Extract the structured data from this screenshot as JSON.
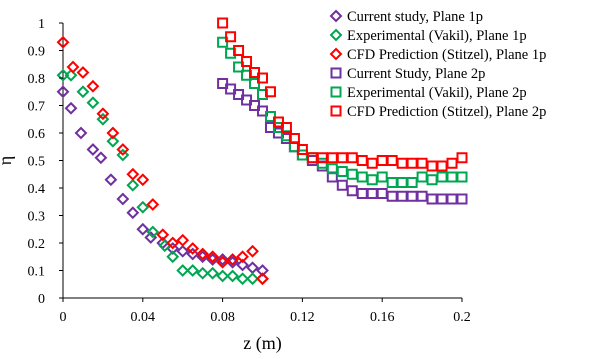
{
  "chart_data": {
    "type": "scatter",
    "xlabel": "z (m)",
    "ylabel": "η",
    "xlim": [
      0,
      0.2
    ],
    "ylim": [
      0,
      1
    ],
    "xticks": [
      "0",
      "0.04",
      "0.08",
      "0.12",
      "0.16",
      "0.2"
    ],
    "yticks": [
      "0",
      "0.1",
      "0.2",
      "0.3",
      "0.4",
      "0.5",
      "0.6",
      "0.7",
      "0.8",
      "0.9",
      "1"
    ],
    "grid": false,
    "legend_position": "top-right",
    "series": [
      {
        "name": "Current study, Plane 1p",
        "marker": "diamond",
        "color": "#7030a0",
        "points": [
          [
            0,
            0.75
          ],
          [
            0.004,
            0.69
          ],
          [
            0.009,
            0.6
          ],
          [
            0.015,
            0.54
          ],
          [
            0.019,
            0.51
          ],
          [
            0.024,
            0.43
          ],
          [
            0.03,
            0.36
          ],
          [
            0.035,
            0.31
          ],
          [
            0.04,
            0.25
          ],
          [
            0.044,
            0.22
          ],
          [
            0.05,
            0.2
          ],
          [
            0.055,
            0.18
          ],
          [
            0.06,
            0.17
          ],
          [
            0.065,
            0.16
          ],
          [
            0.07,
            0.15
          ],
          [
            0.075,
            0.14
          ],
          [
            0.08,
            0.14
          ],
          [
            0.085,
            0.13
          ],
          [
            0.09,
            0.12
          ],
          [
            0.095,
            0.11
          ],
          [
            0.1,
            0.1
          ]
        ]
      },
      {
        "name": "Experimental (Vakil), Plane 1p",
        "marker": "diamond",
        "color": "#00a651",
        "points": [
          [
            0,
            0.81
          ],
          [
            0.004,
            0.81
          ],
          [
            0.01,
            0.75
          ],
          [
            0.015,
            0.71
          ],
          [
            0.02,
            0.65
          ],
          [
            0.025,
            0.57
          ],
          [
            0.03,
            0.52
          ],
          [
            0.035,
            0.41
          ],
          [
            0.04,
            0.33
          ],
          [
            0.045,
            0.24
          ],
          [
            0.051,
            0.19
          ],
          [
            0.055,
            0.15
          ],
          [
            0.06,
            0.1
          ],
          [
            0.065,
            0.1
          ],
          [
            0.07,
            0.09
          ],
          [
            0.075,
            0.09
          ],
          [
            0.08,
            0.08
          ],
          [
            0.085,
            0.08
          ],
          [
            0.09,
            0.07
          ],
          [
            0.095,
            0.07
          ],
          [
            0.1,
            0.07
          ]
        ]
      },
      {
        "name": "CFD Prediction (Stitzel), Plane 1p",
        "marker": "diamond",
        "color": "#ff0000",
        "points": [
          [
            0,
            0.93
          ],
          [
            0.005,
            0.84
          ],
          [
            0.01,
            0.82
          ],
          [
            0.015,
            0.77
          ],
          [
            0.02,
            0.67
          ],
          [
            0.025,
            0.6
          ],
          [
            0.03,
            0.54
          ],
          [
            0.035,
            0.45
          ],
          [
            0.04,
            0.43
          ],
          [
            0.045,
            0.34
          ],
          [
            0.05,
            0.23
          ],
          [
            0.055,
            0.2
          ],
          [
            0.06,
            0.21
          ],
          [
            0.065,
            0.18
          ],
          [
            0.07,
            0.16
          ],
          [
            0.075,
            0.15
          ],
          [
            0.08,
            0.13
          ],
          [
            0.085,
            0.14
          ],
          [
            0.09,
            0.15
          ],
          [
            0.095,
            0.17
          ],
          [
            0.1,
            0.07
          ]
        ]
      },
      {
        "name": "Current Study, Plane 2p",
        "marker": "square",
        "color": "#7030a0",
        "points": [
          [
            0.08,
            0.78
          ],
          [
            0.084,
            0.76
          ],
          [
            0.088,
            0.74
          ],
          [
            0.092,
            0.72
          ],
          [
            0.096,
            0.7
          ],
          [
            0.1,
            0.68
          ],
          [
            0.104,
            0.62
          ],
          [
            0.108,
            0.6
          ],
          [
            0.112,
            0.58
          ],
          [
            0.116,
            0.55
          ],
          [
            0.12,
            0.52
          ],
          [
            0.125,
            0.5
          ],
          [
            0.13,
            0.48
          ],
          [
            0.135,
            0.44
          ],
          [
            0.14,
            0.41
          ],
          [
            0.145,
            0.39
          ],
          [
            0.15,
            0.38
          ],
          [
            0.155,
            0.38
          ],
          [
            0.16,
            0.38
          ],
          [
            0.165,
            0.37
          ],
          [
            0.17,
            0.37
          ],
          [
            0.175,
            0.37
          ],
          [
            0.18,
            0.37
          ],
          [
            0.185,
            0.36
          ],
          [
            0.19,
            0.36
          ],
          [
            0.195,
            0.36
          ],
          [
            0.2,
            0.36
          ]
        ]
      },
      {
        "name": "Experimental (Vakil), Plane 2p",
        "marker": "square",
        "color": "#00a651",
        "points": [
          [
            0.08,
            0.93
          ],
          [
            0.084,
            0.89
          ],
          [
            0.088,
            0.84
          ],
          [
            0.092,
            0.81
          ],
          [
            0.096,
            0.78
          ],
          [
            0.1,
            0.74
          ],
          [
            0.104,
            0.66
          ],
          [
            0.108,
            0.62
          ],
          [
            0.112,
            0.59
          ],
          [
            0.116,
            0.55
          ],
          [
            0.12,
            0.52
          ],
          [
            0.125,
            0.51
          ],
          [
            0.13,
            0.49
          ],
          [
            0.135,
            0.47
          ],
          [
            0.14,
            0.46
          ],
          [
            0.145,
            0.45
          ],
          [
            0.15,
            0.44
          ],
          [
            0.155,
            0.43
          ],
          [
            0.16,
            0.44
          ],
          [
            0.165,
            0.42
          ],
          [
            0.17,
            0.42
          ],
          [
            0.175,
            0.42
          ],
          [
            0.18,
            0.44
          ],
          [
            0.185,
            0.43
          ],
          [
            0.19,
            0.44
          ],
          [
            0.195,
            0.44
          ],
          [
            0.2,
            0.44
          ]
        ]
      },
      {
        "name": "CFD Prediction (Stitzel), Plane 2p",
        "marker": "square",
        "color": "#ff0000",
        "points": [
          [
            0.08,
            1.0
          ],
          [
            0.084,
            0.95
          ],
          [
            0.088,
            0.9
          ],
          [
            0.092,
            0.86
          ],
          [
            0.096,
            0.82
          ],
          [
            0.1,
            0.8
          ],
          [
            0.104,
            0.75
          ],
          [
            0.108,
            0.64
          ],
          [
            0.112,
            0.62
          ],
          [
            0.116,
            0.58
          ],
          [
            0.12,
            0.54
          ],
          [
            0.125,
            0.51
          ],
          [
            0.13,
            0.51
          ],
          [
            0.135,
            0.51
          ],
          [
            0.14,
            0.51
          ],
          [
            0.145,
            0.51
          ],
          [
            0.15,
            0.5
          ],
          [
            0.155,
            0.49
          ],
          [
            0.16,
            0.5
          ],
          [
            0.165,
            0.5
          ],
          [
            0.17,
            0.49
          ],
          [
            0.175,
            0.49
          ],
          [
            0.18,
            0.49
          ],
          [
            0.185,
            0.48
          ],
          [
            0.19,
            0.48
          ],
          [
            0.195,
            0.49
          ],
          [
            0.2,
            0.51
          ]
        ]
      }
    ]
  }
}
